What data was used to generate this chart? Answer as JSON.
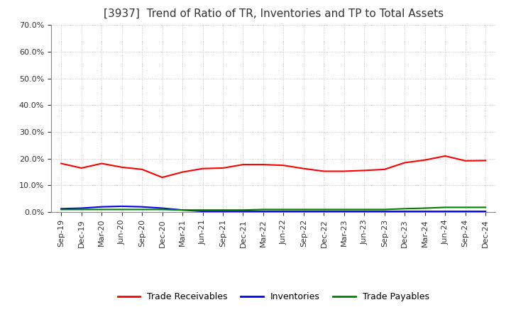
{
  "title": "[3937]  Trend of Ratio of TR, Inventories and TP to Total Assets",
  "x_labels": [
    "Sep-19",
    "Dec-19",
    "Mar-20",
    "Jun-20",
    "Sep-20",
    "Dec-20",
    "Mar-21",
    "Jun-21",
    "Sep-21",
    "Dec-21",
    "Mar-22",
    "Jun-22",
    "Sep-22",
    "Dec-22",
    "Mar-23",
    "Jun-23",
    "Sep-23",
    "Dec-23",
    "Mar-24",
    "Jun-24",
    "Sep-24",
    "Dec-24"
  ],
  "trade_receivables": [
    0.182,
    0.165,
    0.182,
    0.168,
    0.16,
    0.13,
    0.15,
    0.163,
    0.165,
    0.178,
    0.178,
    0.175,
    0.163,
    0.153,
    0.153,
    0.156,
    0.16,
    0.185,
    0.195,
    0.21,
    0.192,
    0.193
  ],
  "inventories": [
    0.013,
    0.015,
    0.02,
    0.022,
    0.02,
    0.015,
    0.008,
    0.003,
    0.003,
    0.003,
    0.003,
    0.003,
    0.003,
    0.003,
    0.003,
    0.003,
    0.003,
    0.003,
    0.003,
    0.003,
    0.003,
    0.003
  ],
  "trade_payables": [
    0.01,
    0.01,
    0.01,
    0.01,
    0.01,
    0.01,
    0.008,
    0.008,
    0.008,
    0.008,
    0.01,
    0.01,
    0.01,
    0.01,
    0.01,
    0.01,
    0.01,
    0.013,
    0.015,
    0.018,
    0.018,
    0.018
  ],
  "tr_color": "#FF0000",
  "inv_color": "#0000FF",
  "tp_color": "#008000",
  "ylim": [
    0.0,
    0.7
  ],
  "yticks": [
    0.0,
    0.1,
    0.2,
    0.3,
    0.4,
    0.5,
    0.6,
    0.7
  ],
  "ytick_labels": [
    "0.0%",
    "10.0%",
    "20.0%",
    "30.0%",
    "40.0%",
    "50.0%",
    "60.0%",
    "70.0%"
  ],
  "background_color": "#FFFFFF",
  "grid_color": "#BBBBBB",
  "legend_labels": [
    "Trade Receivables",
    "Inventories",
    "Trade Payables"
  ],
  "title_fontsize": 11,
  "tick_fontsize": 8,
  "legend_fontsize": 9
}
